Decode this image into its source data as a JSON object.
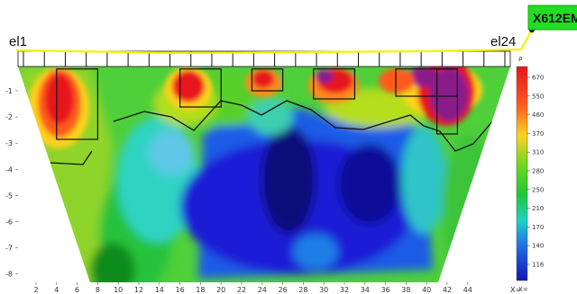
{
  "chart_data": {
    "type": "heatmap",
    "title": "",
    "electrodes": {
      "first_label": "el1",
      "last_label": "el24",
      "count": 24
    },
    "tag": {
      "label": "X612EM",
      "color": "#22dd22"
    },
    "x_axis": {
      "ticks": [
        "2",
        "4",
        "6",
        "8",
        "10",
        "12",
        "14",
        "16",
        "18",
        "20",
        "22",
        "24",
        "26",
        "28",
        "30",
        "32",
        "34",
        "36",
        "38",
        "40",
        "42",
        "44"
      ],
      "unit_label": "X="
    },
    "y_axis": {
      "ticks": [
        "-1",
        "-2",
        "-3",
        "-4",
        "-5",
        "-6",
        "-7",
        "-8"
      ],
      "ylim": [
        -8.3,
        0
      ]
    },
    "colorbar": {
      "values": [
        "670",
        "550",
        "460",
        "370",
        "310",
        "280",
        "250",
        "210",
        "170",
        "140",
        "116"
      ],
      "top_label": "ρ",
      "bottom_label": "X="
    },
    "anomalies": [
      {
        "x_range": [
          4.0,
          8.0
        ],
        "depth_range": [
          0.1,
          2.7
        ]
      },
      {
        "x_range": [
          16.0,
          20.0
        ],
        "depth_range": [
          0.1,
          1.5
        ]
      },
      {
        "x_range": [
          23.0,
          26.0
        ],
        "depth_range": [
          0.1,
          0.9
        ]
      },
      {
        "x_range": [
          29.0,
          33.0
        ],
        "depth_range": [
          0.1,
          1.2
        ]
      },
      {
        "x_range": [
          37.0,
          43.0
        ],
        "depth_range": [
          0.1,
          1.1
        ]
      },
      {
        "x_range": [
          41.0,
          43.0
        ],
        "depth_range": [
          0.1,
          2.5
        ]
      }
    ],
    "colors": {
      "frame": "#ffff00",
      "low_resistivity": "#1a1ad6",
      "high_resistivity": "#e8141a",
      "peak_resistivity": "#8a1a8a"
    }
  }
}
